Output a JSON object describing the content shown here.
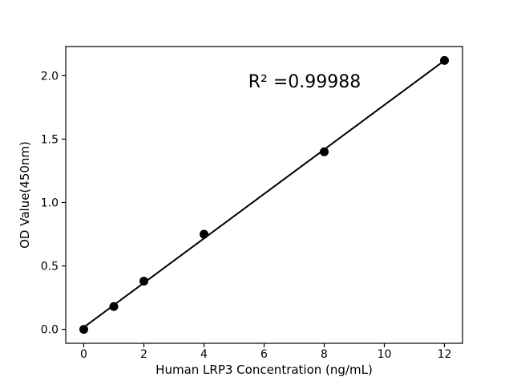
{
  "figure": {
    "background": "#ffffff",
    "foreground": "#000000"
  },
  "chart_data": {
    "type": "scatter",
    "title": "",
    "xlabel": "Human LRP3 Concentration (ng/mL)",
    "ylabel": "OD Value(450nm)",
    "annotation": "R² =0.99988",
    "x": [
      0,
      1,
      2,
      4,
      8,
      12
    ],
    "y": [
      0.0,
      0.18,
      0.38,
      0.75,
      1.4,
      2.12
    ],
    "fit_line": {
      "slope": 0.1753,
      "intercept": 0.016,
      "x_start": 0,
      "x_end": 12
    },
    "x_ticks": [
      0,
      2,
      4,
      6,
      8,
      10,
      12
    ],
    "x_tick_labels": [
      "0",
      "2",
      "4",
      "6",
      "8",
      "10",
      "12"
    ],
    "y_ticks": [
      0.0,
      0.5,
      1.0,
      1.5,
      2.0
    ],
    "y_tick_labels": [
      "0.0",
      "0.5",
      "1.0",
      "1.5",
      "2.0"
    ],
    "xlim": [
      -0.6,
      12.6
    ],
    "ylim": [
      -0.11,
      2.23
    ],
    "grid": false,
    "legend": null,
    "marker_color": "#000000",
    "line_color": "#000000"
  }
}
